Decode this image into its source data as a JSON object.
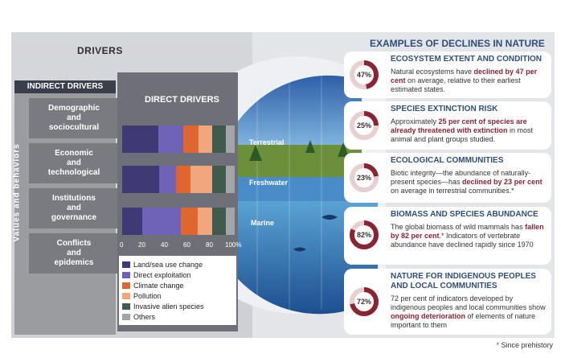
{
  "drivers_title": "DRIVERS",
  "indirect": {
    "header": "INDIRECT DRIVERS",
    "side_label": "Values and behaviors",
    "items": [
      {
        "l1": "Demographic",
        "l2": "and",
        "l3": "sociocultural"
      },
      {
        "l1": "Economic",
        "l2": "and",
        "l3": "technological"
      },
      {
        "l1": "Institutions",
        "l2": "and",
        "l3": "governance"
      },
      {
        "l1": "Conflicts",
        "l2": "and",
        "l3": "epidemics"
      }
    ]
  },
  "direct": {
    "header": "DIRECT DRIVERS",
    "ticks": [
      "0",
      "20",
      "40",
      "60",
      "80",
      "100%"
    ],
    "legend": [
      {
        "label": "Land/sea use change",
        "color": "#3f3a73"
      },
      {
        "label": "Direct exploitation",
        "color": "#6e63b8"
      },
      {
        "label": "Climate change",
        "color": "#e0662f"
      },
      {
        "label": "Pollution",
        "color": "#f0a77e"
      },
      {
        "label": "Invasive alien species",
        "color": "#3e5b4d"
      },
      {
        "label": "Others",
        "color": "#a3a4a8"
      }
    ],
    "realms": [
      "Terrestrial",
      "Freshwater",
      "Marine"
    ]
  },
  "chart_data": {
    "type": "bar",
    "orientation": "horizontal",
    "stacked": true,
    "categories": [
      "Terrestrial",
      "Freshwater",
      "Marine"
    ],
    "series": [
      {
        "name": "Land/sea use change",
        "values": [
          32,
          33,
          18
        ]
      },
      {
        "name": "Direct exploitation",
        "values": [
          22,
          15,
          34
        ]
      },
      {
        "name": "Climate change",
        "values": [
          14,
          13,
          15
        ]
      },
      {
        "name": "Pollution",
        "values": [
          12,
          19,
          13
        ]
      },
      {
        "name": "Invasive alien species",
        "values": [
          12,
          12,
          12
        ]
      },
      {
        "name": "Others",
        "values": [
          8,
          8,
          8
        ]
      }
    ],
    "xlim": [
      0,
      100
    ]
  },
  "examples": {
    "title": "EXAMPLES OF DECLINES IN NATURE",
    "cards": [
      {
        "title1": "ECOSYSTEM EXTENT AND CONDITION",
        "title2": "",
        "pct": "47%",
        "value": 47,
        "text_before": "Natural ecosystems have ",
        "text_bold": "declined by 47 per cent",
        "text_after": " on average, relative to their earliest estimated states."
      },
      {
        "title1": "SPECIES EXTINCTION RISK",
        "title2": "",
        "pct": "25%",
        "value": 25,
        "text_before": "Approximately ",
        "text_bold": "25 per cent of species are already threatened with extinction",
        "text_after": " in most animal and plant groups studied."
      },
      {
        "title1": "ECOLOGICAL COMMUNITIES",
        "title2": "",
        "pct": "23%",
        "value": 23,
        "text_before": "Biotic integrity—the abundance of naturally-present species—has ",
        "text_bold": "declined by 23 per cent",
        "text_after": " on average in terrestrial communities.*"
      },
      {
        "title1": "BIOMASS AND SPECIES ABUNDANCE",
        "title2": "",
        "pct": "82%",
        "value": 82,
        "text_before": "The global biomass of wild mammals has ",
        "text_bold": "fallen by 82 per cent",
        "text_after": ".* Indicators of vertebrate abundance have declined rapidly since 1970"
      },
      {
        "title1": "NATURE FOR INDIGENOUS PEOPLES",
        "title2": "AND LOCAL COMMUNITIES",
        "pct": "72%",
        "value": 72,
        "text_before": "72 per cent of indicators developed by indigenous peoples and local communities show ",
        "text_bold": "ongoing deterioration",
        "text_after": " of elements of nature important to them"
      }
    ]
  },
  "footnote": {
    "star": "*",
    "text": " Since prehistory"
  },
  "colors": {
    "accent_blue": "#2f4e7a",
    "donut_fill": "#8a2431",
    "donut_track": "#e8cfd2"
  }
}
